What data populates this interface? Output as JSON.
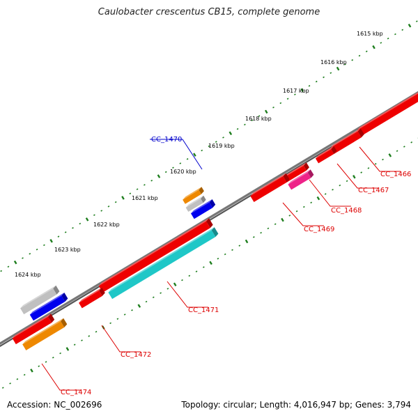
{
  "title": "Caulobacter crescentus CB15, complete genome",
  "accession_label": "Accession: NC_002696",
  "topology_label": "Topology: circular; Length: 4,016,947 bp; Genes: 3,794",
  "colors": {
    "backbone": "#777777",
    "tick": "#1e7e1e",
    "label_red": "#dd0000",
    "label_blue": "#0000cc",
    "red": "#ee0000",
    "cyan": "#1fc7c7",
    "blue": "#0000ee",
    "gray": "#c0c0c0",
    "orange": "#ee8800",
    "magenta": "#ee2288"
  },
  "kbp_ticks": [
    "1615 kbp",
    "1616 kbp",
    "1617 kbp",
    "1618 kbp",
    "1619 kbp",
    "1620 kbp",
    "1621 kbp",
    "1622 kbp",
    "1623 kbp",
    "1624 kbp"
  ],
  "gene_labels": [
    "CC_1466",
    "CC_1467",
    "CC_1468",
    "CC_1469",
    "CC_1470",
    "CC_1471",
    "CC_1472",
    "CC_1474"
  ],
  "features": [
    {
      "color": "red"
    },
    {
      "color": "red"
    },
    {
      "color": "red"
    },
    {
      "color": "red"
    },
    {
      "color": "magenta"
    },
    {
      "color": "red"
    },
    {
      "color": "red"
    },
    {
      "color": "red"
    },
    {
      "color": "cyan"
    },
    {
      "color": "gray"
    },
    {
      "color": "blue"
    },
    {
      "color": "red"
    },
    {
      "color": "orange"
    },
    {
      "color": "orange"
    },
    {
      "color": "gray"
    },
    {
      "color": "blue"
    }
  ]
}
